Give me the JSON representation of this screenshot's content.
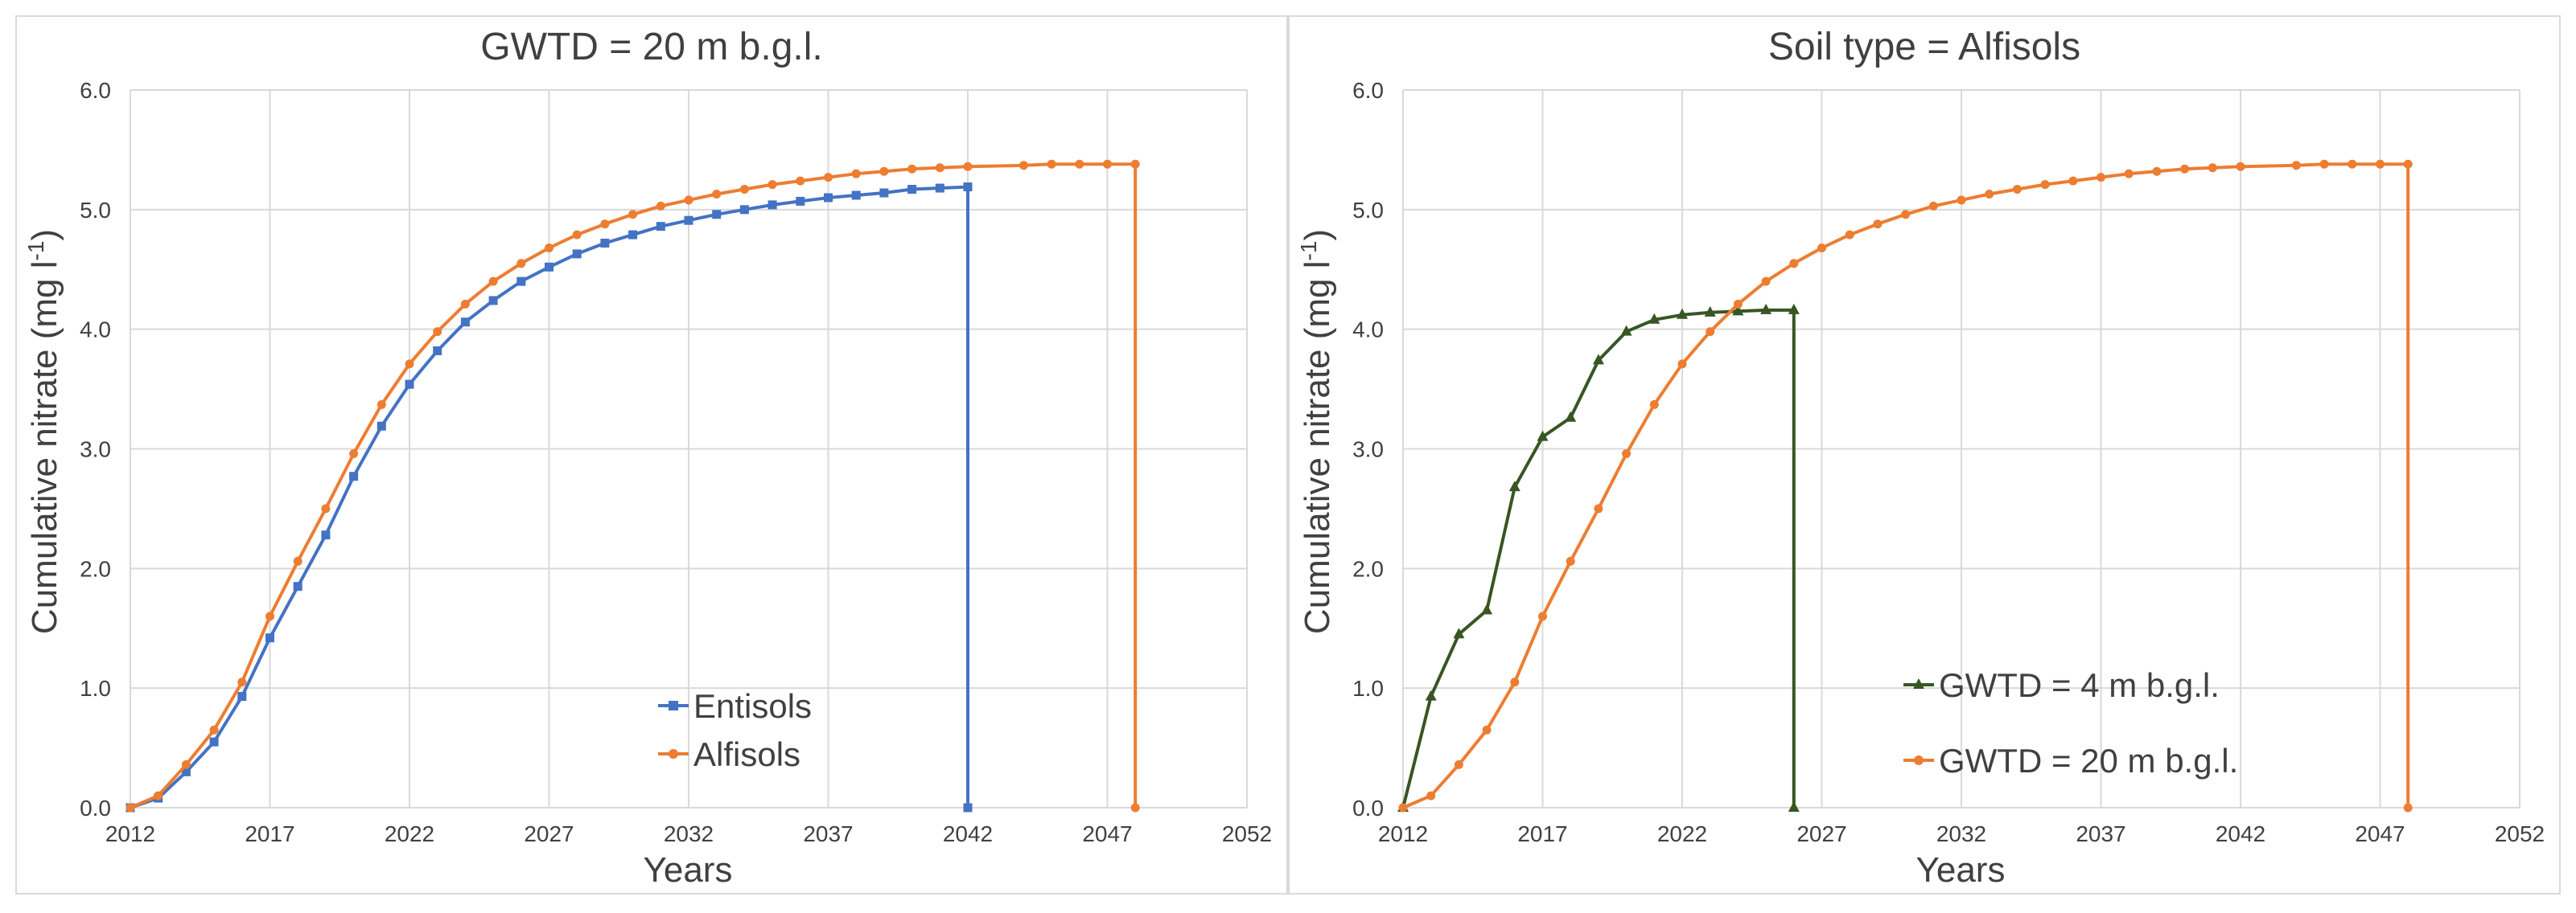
{
  "colors": {
    "entisols": "#4472c4",
    "alfisols": "#ed7d31",
    "gwtd4": "#375623",
    "gwtd20": "#ed7d31",
    "grid": "#d9d9d9",
    "text": "#404040"
  },
  "chart_data": [
    {
      "type": "line",
      "title": "GWTD = 20 m b.g.l.",
      "xlabel": "Years",
      "ylabel_main": "Cumulative nitrate (mg l",
      "ylabel_sup": "-1",
      "ylabel_close": ")",
      "xlim": [
        2012,
        2052
      ],
      "ylim": [
        0,
        6
      ],
      "xticks": [
        "2012",
        "2017",
        "2022",
        "2027",
        "2032",
        "2037",
        "2042",
        "2047",
        "2052"
      ],
      "yticks": [
        "0.0",
        "1.0",
        "2.0",
        "3.0",
        "4.0",
        "5.0",
        "6.0"
      ],
      "grid": true,
      "legend_position": "bottom-center",
      "series": [
        {
          "name": "Entisols",
          "color_key": "entisols",
          "marker": "square",
          "x": [
            2012,
            2013,
            2014,
            2015,
            2016,
            2017,
            2018,
            2019,
            2020,
            2021,
            2022,
            2023,
            2024,
            2025,
            2026,
            2027,
            2028,
            2029,
            2030,
            2031,
            2032,
            2033,
            2034,
            2035,
            2036,
            2037,
            2038,
            2039,
            2040,
            2041,
            2042,
            2042
          ],
          "y": [
            0.0,
            0.08,
            0.3,
            0.55,
            0.93,
            1.42,
            1.85,
            2.28,
            2.77,
            3.19,
            3.54,
            3.82,
            4.06,
            4.24,
            4.4,
            4.52,
            4.63,
            4.72,
            4.79,
            4.86,
            4.91,
            4.96,
            5.0,
            5.04,
            5.07,
            5.1,
            5.12,
            5.14,
            5.17,
            5.18,
            5.19,
            0.0
          ]
        },
        {
          "name": "Alfisols",
          "color_key": "alfisols",
          "marker": "circle",
          "x": [
            2012,
            2013,
            2014,
            2015,
            2016,
            2017,
            2018,
            2019,
            2020,
            2021,
            2022,
            2023,
            2024,
            2025,
            2026,
            2027,
            2028,
            2029,
            2030,
            2031,
            2032,
            2033,
            2034,
            2035,
            2036,
            2037,
            2038,
            2039,
            2040,
            2041,
            2042,
            2044,
            2045,
            2046,
            2047,
            2048,
            2048
          ],
          "y": [
            0.0,
            0.1,
            0.36,
            0.65,
            1.05,
            1.6,
            2.06,
            2.5,
            2.96,
            3.37,
            3.71,
            3.98,
            4.21,
            4.4,
            4.55,
            4.68,
            4.79,
            4.88,
            4.96,
            5.03,
            5.08,
            5.13,
            5.17,
            5.21,
            5.24,
            5.27,
            5.3,
            5.32,
            5.34,
            5.35,
            5.36,
            5.37,
            5.38,
            5.38,
            5.38,
            5.38,
            0.0
          ]
        }
      ]
    },
    {
      "type": "line",
      "title": "Soil type = Alfisols",
      "xlabel": "Years",
      "ylabel_main": "Cumulative nitrate (mg l",
      "ylabel_sup": "-1",
      "ylabel_close": ")",
      "xlim": [
        2012,
        2052
      ],
      "ylim": [
        0,
        6
      ],
      "xticks": [
        "2012",
        "2017",
        "2022",
        "2027",
        "2032",
        "2037",
        "2042",
        "2047",
        "2052"
      ],
      "yticks": [
        "0.0",
        "1.0",
        "2.0",
        "3.0",
        "4.0",
        "5.0",
        "6.0"
      ],
      "grid": true,
      "legend_position": "bottom-center",
      "series": [
        {
          "name": "GWTD = 4 m b.g.l.",
          "color_key": "gwtd4",
          "marker": "triangle",
          "x": [
            2012,
            2013,
            2014,
            2015,
            2016,
            2017,
            2018,
            2019,
            2020,
            2021,
            2022,
            2023,
            2024,
            2025,
            2026,
            2026
          ],
          "y": [
            0.0,
            0.93,
            1.45,
            1.65,
            2.68,
            3.1,
            3.26,
            3.74,
            3.98,
            4.08,
            4.12,
            4.14,
            4.15,
            4.16,
            4.16,
            0.0
          ]
        },
        {
          "name": "GWTD = 20 m b.g.l.",
          "color_key": "gwtd20",
          "marker": "circle",
          "x": [
            2012,
            2013,
            2014,
            2015,
            2016,
            2017,
            2018,
            2019,
            2020,
            2021,
            2022,
            2023,
            2024,
            2025,
            2026,
            2027,
            2028,
            2029,
            2030,
            2031,
            2032,
            2033,
            2034,
            2035,
            2036,
            2037,
            2038,
            2039,
            2040,
            2041,
            2042,
            2044,
            2045,
            2046,
            2047,
            2048,
            2048
          ],
          "y": [
            0.0,
            0.1,
            0.36,
            0.65,
            1.05,
            1.6,
            2.06,
            2.5,
            2.96,
            3.37,
            3.71,
            3.98,
            4.21,
            4.4,
            4.55,
            4.68,
            4.79,
            4.88,
            4.96,
            5.03,
            5.08,
            5.13,
            5.17,
            5.21,
            5.24,
            5.27,
            5.3,
            5.32,
            5.34,
            5.35,
            5.36,
            5.37,
            5.38,
            5.38,
            5.38,
            5.38,
            0.0
          ]
        }
      ]
    }
  ]
}
